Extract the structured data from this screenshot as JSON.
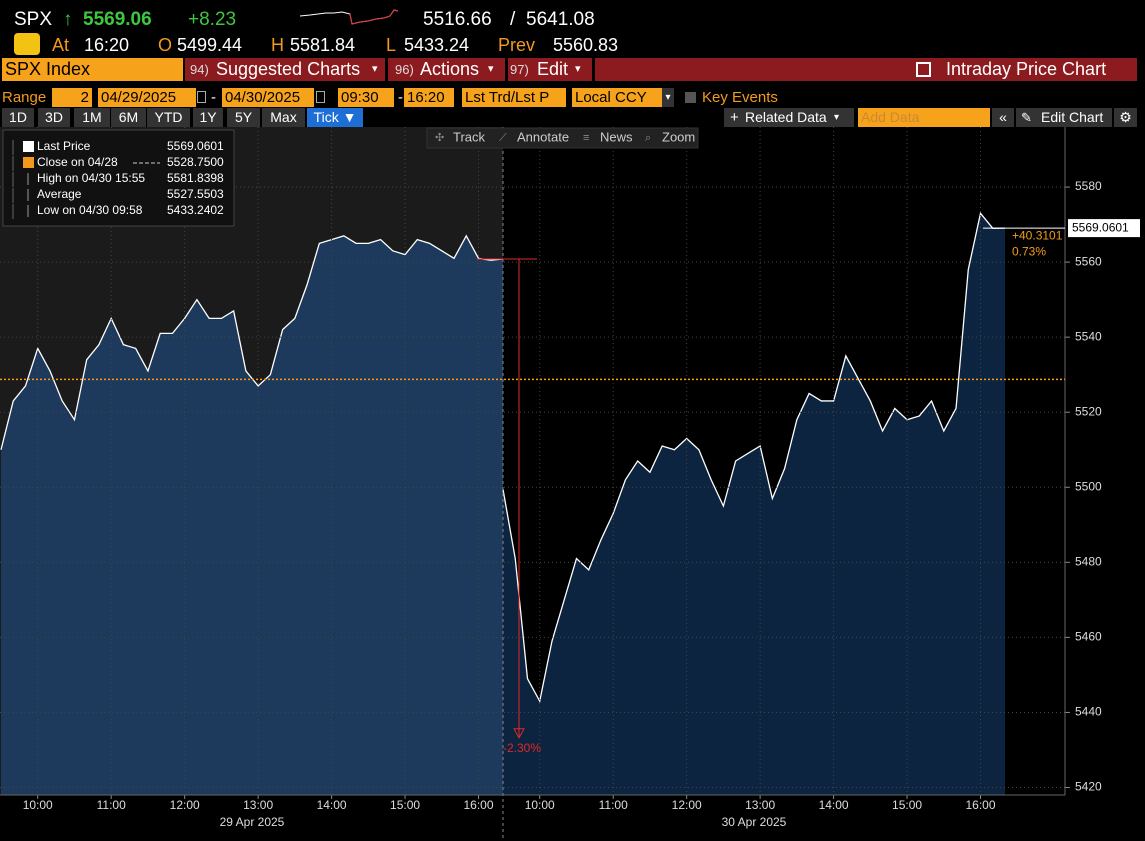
{
  "header": {
    "ticker": "SPX",
    "arrow": "↑",
    "last": "5569.06",
    "change": "+8.23",
    "range_low": "5516.66",
    "range_sep": "/",
    "range_high": "5641.08"
  },
  "quote": {
    "at_label": "At",
    "at": "16:20",
    "open_label": "O",
    "open": "5499.44",
    "high_label": "H",
    "high": "5581.84",
    "low_label": "L",
    "low": "5433.24",
    "prev_label": "Prev",
    "prev": "5560.83"
  },
  "menu": {
    "security": "SPX Index",
    "items": [
      {
        "num": "94)",
        "label": "Suggested Charts"
      },
      {
        "num": "96)",
        "label": "Actions"
      },
      {
        "num": "97)",
        "label": "Edit"
      }
    ],
    "title": "Intraday Price Chart"
  },
  "range": {
    "label": "Range",
    "period": "2",
    "start_date": "04/29/2025",
    "separator": "-",
    "end_date": "04/30/2025",
    "start_time": "09:30",
    "end_time": "16:20",
    "price_field": "Lst Trd/Lst P",
    "currency": "Local CCY",
    "key_events": "Key Events"
  },
  "toolbar": {
    "periods": [
      "1D",
      "3D",
      "1M",
      "6M",
      "YTD",
      "1Y",
      "5Y",
      "Max",
      "Tick ▼"
    ],
    "related_data": "Related Data",
    "add_data": "Add Data",
    "edit_chart": "Edit Chart"
  },
  "tools": [
    "Track",
    "Annotate",
    "News",
    "Zoom"
  ],
  "legend": [
    {
      "label": "Last Price",
      "value": "5569.0601"
    },
    {
      "label": "Close on 04/28",
      "value": "5528.7500"
    },
    {
      "label": "High on 04/30 15:55",
      "value": "5581.8398"
    },
    {
      "label": "Average",
      "value": "5527.5503"
    },
    {
      "label": "Low on 04/30 09:58",
      "value": "5433.2402"
    }
  ],
  "chart": {
    "type": "line",
    "color": "#ffffff",
    "categories": [
      null,
      null,
      null,
      "10:00",
      null,
      null,
      null,
      null,
      null,
      "11:00",
      null,
      null,
      null,
      null,
      null,
      "12:00",
      null,
      null,
      null,
      null,
      null,
      "13:00",
      null,
      null,
      null,
      null,
      null,
      "14:00",
      null,
      null,
      null,
      null,
      null,
      "15:00",
      null,
      null,
      null,
      null,
      null,
      "16:00",
      null,
      null,
      null,
      null,
      null,
      "10:00",
      null,
      null,
      null,
      null,
      null,
      "11:00",
      null,
      null,
      null,
      null,
      null,
      "12:00",
      null,
      null,
      null,
      null,
      null,
      "13:00",
      null,
      null,
      null,
      null,
      null,
      "14:00",
      null,
      null,
      null,
      null,
      null,
      "15:00",
      null,
      null,
      null,
      null,
      null,
      "16:00",
      null,
      null
    ],
    "values": [
      5510,
      5523,
      5527,
      5537,
      5531,
      5523,
      5518,
      5534,
      5538,
      5545,
      5538,
      5537,
      5531,
      5541,
      5541,
      5545,
      5550,
      5545,
      5545,
      5547,
      5531,
      5527,
      5530,
      5542,
      5545,
      5554,
      5565,
      5566,
      5567,
      5565,
      5565,
      5566,
      5563,
      5562,
      5566,
      5565,
      5563,
      5561,
      5567,
      5561,
      5560.5,
      5560.83,
      5499.44,
      5481,
      5449,
      5443,
      5459,
      5470,
      5481,
      5478,
      5486,
      5493,
      5502,
      5507,
      5504,
      5511,
      5510,
      5513,
      5510,
      5502,
      5495,
      5507,
      5509,
      5511,
      5497,
      5505,
      5518,
      5525,
      5523,
      5523,
      5535,
      5529,
      5523,
      5515,
      5521,
      5518,
      5519,
      5523,
      5515,
      5521,
      5558,
      5573,
      5569,
      5569.06
    ],
    "day_labels": [
      "29 Apr 2025",
      "30 Apr 2025"
    ],
    "ylim": [
      5418,
      5596
    ],
    "yticks": [
      5420,
      5440,
      5460,
      5480,
      5500,
      5520,
      5540,
      5560,
      5580
    ],
    "grid": true,
    "prev_close": 5528.75,
    "drop": {
      "from": 5560.83,
      "to": 5433.24,
      "label": "-2.30%"
    },
    "last_price": 5569.0601,
    "change_label": "+40.3101",
    "change_pct_label": "0.73%"
  }
}
